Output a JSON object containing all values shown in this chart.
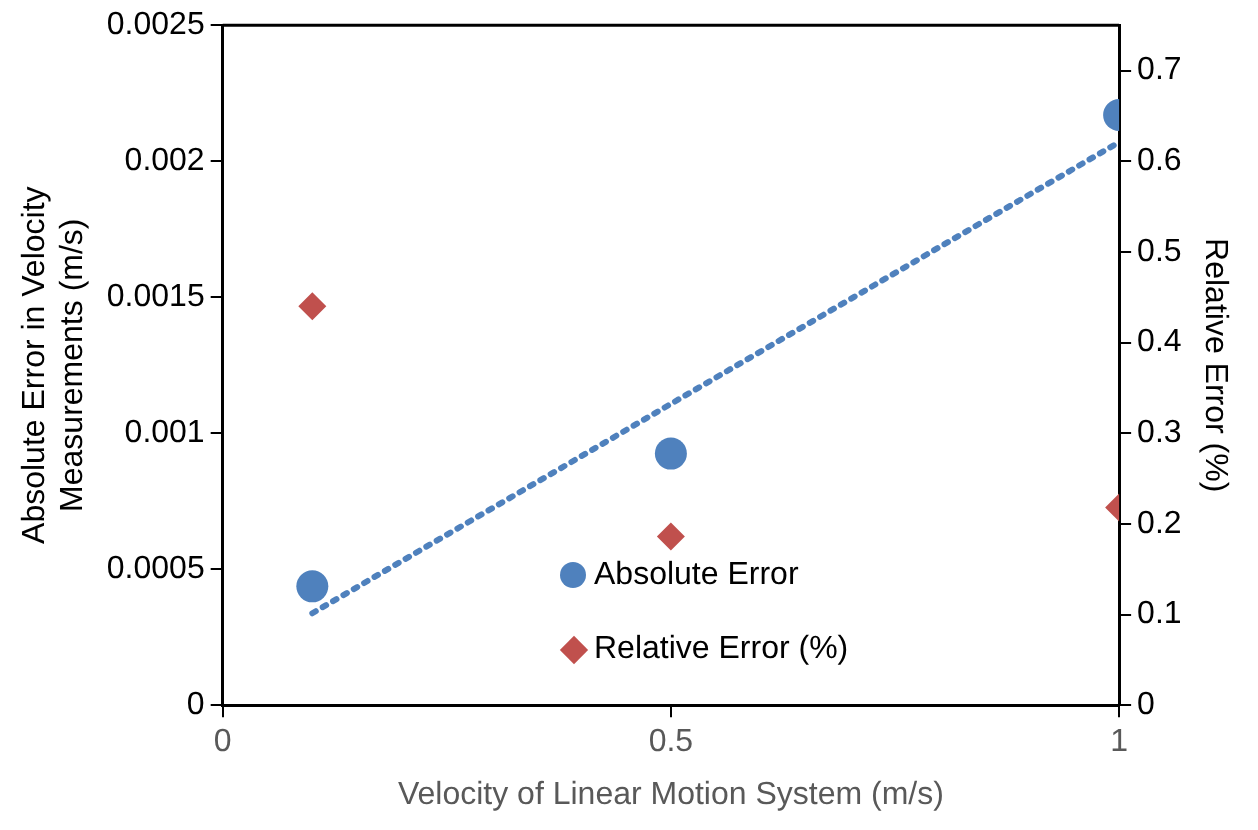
{
  "chart_data": {
    "type": "scatter",
    "xlabel": "Velocity of Linear Motion System (m/s)",
    "ylabel": "Absolute Error in Velocity Measurements (m/s)",
    "y2label": "Relative Error (%)",
    "x": [
      0.1,
      0.5,
      1
    ],
    "series": [
      {
        "name": "Absolute Error",
        "color": "#4f81bd",
        "marker": "circle",
        "values": [
          0.000437,
          0.000925,
          0.00217
        ]
      },
      {
        "name": "Relative Error (%)",
        "color": "#c0504d",
        "marker": "diamond",
        "axis": "y2",
        "values": [
          0.44,
          0.186,
          0.218
        ]
      },
      {
        "type": "line",
        "color": "#4f81bd",
        "line_style": "dotted",
        "marker": "none",
        "x": [
          0.1,
          1
        ],
        "values": [
          0.000338,
          0.00207
        ]
      }
    ],
    "xlim": [
      0,
      1
    ],
    "xticks": [
      0,
      0.5,
      1
    ],
    "ylim": [
      0,
      0.0025
    ],
    "yticks": [
      0,
      0.0005,
      0.001,
      0.0015,
      0.002,
      0.0025
    ],
    "y2lim": [
      0,
      0.75
    ],
    "y2ticks": [
      0,
      0.1,
      0.2,
      0.3,
      0.4,
      0.5,
      0.6,
      0.7
    ],
    "grid": false,
    "legend": "bottom"
  }
}
